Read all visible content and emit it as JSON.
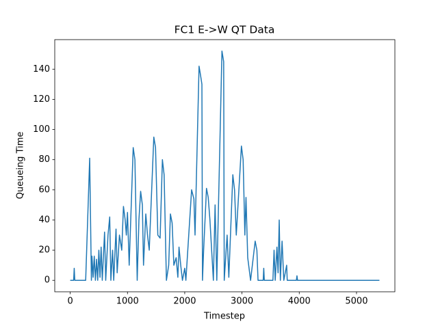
{
  "chart_data": {
    "type": "line",
    "title": "FC1 E->W QT Data",
    "xlabel": "Timestep",
    "ylabel": "Queueing Time",
    "color": "#1f77b4",
    "grid": false,
    "xlim": [
      -270,
      5670
    ],
    "ylim": [
      -7.6,
      159.6
    ],
    "xticks": [
      0,
      1000,
      2000,
      3000,
      4000,
      5000
    ],
    "yticks": [
      0,
      20,
      40,
      60,
      80,
      100,
      120,
      140
    ],
    "x": [
      0,
      60,
      70,
      80,
      270,
      340,
      370,
      380,
      400,
      420,
      440,
      460,
      480,
      500,
      520,
      540,
      560,
      600,
      620,
      660,
      690,
      710,
      740,
      760,
      800,
      820,
      860,
      900,
      930,
      960,
      980,
      1000,
      1030,
      1100,
      1130,
      1170,
      1200,
      1230,
      1260,
      1280,
      1320,
      1350,
      1380,
      1460,
      1490,
      1530,
      1570,
      1610,
      1640,
      1680,
      1720,
      1750,
      1780,
      1810,
      1850,
      1880,
      1900,
      1930,
      1960,
      2000,
      2020,
      2120,
      2160,
      2180,
      2250,
      2280,
      2300,
      2310,
      2330,
      2380,
      2410,
      2440,
      2470,
      2500,
      2530,
      2560,
      2650,
      2680,
      2690,
      2740,
      2770,
      2840,
      2870,
      2900,
      2990,
      3020,
      3050,
      3070,
      3100,
      3150,
      3230,
      3260,
      3280,
      3370,
      3380,
      3390,
      3540,
      3560,
      3580,
      3610,
      3630,
      3650,
      3670,
      3700,
      3730,
      3780,
      3790,
      3950,
      3960,
      3970,
      5400
    ],
    "values": [
      0,
      0,
      8,
      0,
      0,
      81,
      0,
      16,
      2,
      16,
      0,
      14,
      0,
      20,
      2,
      22,
      0,
      32,
      0,
      30,
      42,
      0,
      20,
      0,
      34,
      5,
      30,
      20,
      49,
      40,
      30,
      45,
      10,
      88,
      80,
      0,
      40,
      59,
      50,
      10,
      44,
      30,
      20,
      95,
      88,
      30,
      28,
      80,
      70,
      0,
      10,
      44,
      38,
      10,
      15,
      2,
      22,
      10,
      0,
      8,
      0,
      60,
      54,
      30,
      142,
      135,
      130,
      0,
      20,
      61,
      55,
      40,
      20,
      0,
      50,
      0,
      152,
      145,
      0,
      30,
      2,
      70,
      60,
      30,
      89,
      80,
      30,
      55,
      15,
      0,
      26,
      20,
      0,
      0,
      8,
      0,
      0,
      20,
      0,
      22,
      5,
      40,
      0,
      26,
      0,
      10,
      0,
      0,
      3,
      0,
      0
    ]
  }
}
